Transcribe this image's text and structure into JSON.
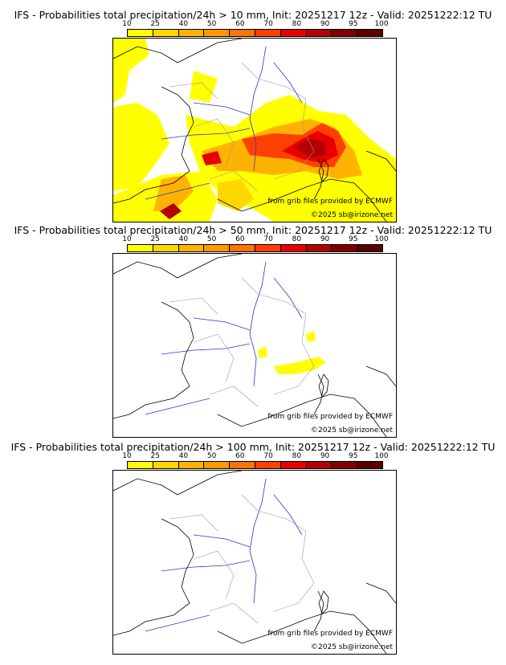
{
  "scale": {
    "labels": [
      "10",
      "25",
      "40",
      "50",
      "60",
      "70",
      "80",
      "90",
      "95",
      "100"
    ],
    "colors": [
      "#ffff00",
      "#ffd700",
      "#ffb300",
      "#ff9900",
      "#ff7300",
      "#ff4000",
      "#e60000",
      "#b30000",
      "#800000",
      "#5a0000"
    ]
  },
  "credits": {
    "grib": "from grib files provided by ECMWF",
    "copyright": "©2025 sb@irizone.net"
  },
  "colors": {
    "coast": "#000000",
    "borders": "#999999",
    "rivers": "#3333cc"
  },
  "panels": [
    {
      "title": "IFS - Probabilities total precipitation/24h > 10 mm, Init: 20251217 12z - Valid: 20251222:12 TU"
    },
    {
      "title": "IFS - Probabilities total precipitation/24h > 50 mm, Init: 20251217 12z - Valid: 20251222:12 TU"
    },
    {
      "title": "IFS - Probabilities total precipitation/24h > 100 mm, Init: 20251217 12z - Valid: 20251222:12 TU"
    }
  ]
}
